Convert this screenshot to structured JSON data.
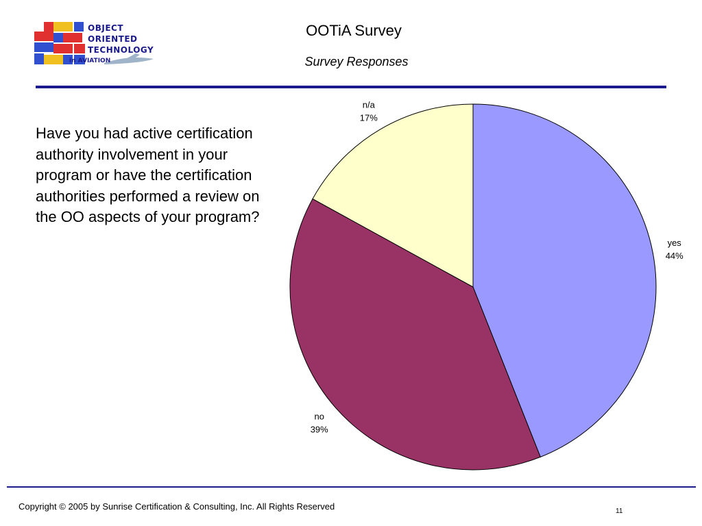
{
  "header": {
    "logo_lines": [
      "OBJECT",
      "ORIENTED",
      "TECHNOLOGY"
    ],
    "logo_sub": "in AVIATION",
    "title": "OOTiA Survey",
    "subtitle": "Survey Responses"
  },
  "question": "Have you had active certification authority involvement in your program or have the certification authorities performed a review on the OO aspects of your program?",
  "chart_data": {
    "type": "pie",
    "title": "",
    "slices": [
      {
        "label": "yes",
        "value": 44,
        "display": "44%",
        "color": "#9999ff"
      },
      {
        "label": "no",
        "value": 39,
        "display": "39%",
        "color": "#993366"
      },
      {
        "label": "n/a",
        "value": 17,
        "display": "17%",
        "color": "#ffffcc"
      }
    ],
    "start": "12 o'clock",
    "direction": "clockwise",
    "legend": "none"
  },
  "footer": {
    "copyright": "Copyright © 2005 by Sunrise Certification & Consulting, Inc.  All Rights Reserved",
    "page_number": "11"
  },
  "colors": {
    "rule": "#1a1a8c",
    "logo_text": "#1a1a8c"
  }
}
